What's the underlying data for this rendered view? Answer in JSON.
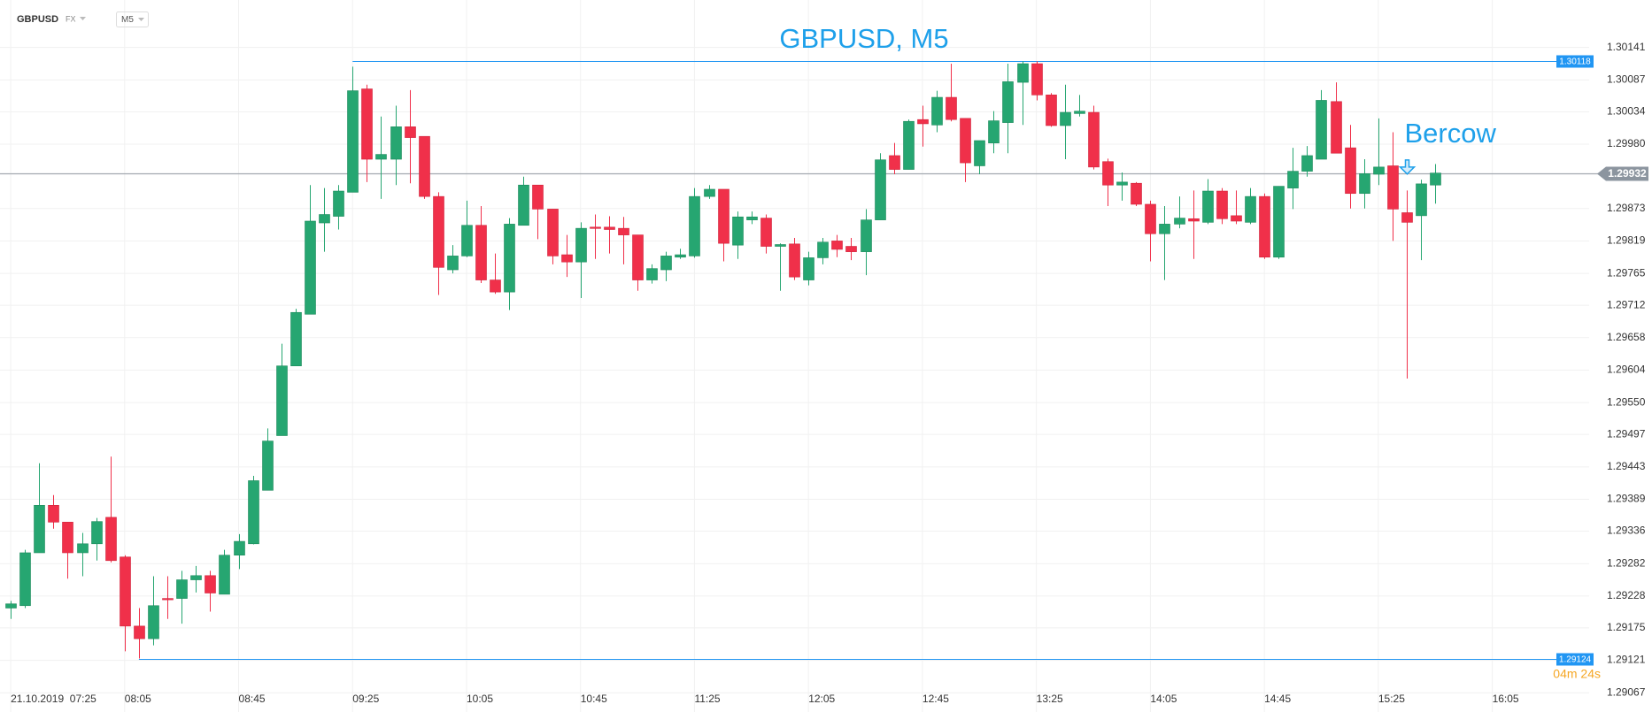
{
  "chart_data": {
    "type": "candlestick",
    "symbol": "GBPUSD",
    "market": "FX",
    "timeframe": "M5",
    "title": "GBPUSD, M5",
    "up_color": "#26a671",
    "down_color": "#f0304a",
    "open": [
      1.29208,
      1.29212,
      1.293,
      1.29379,
      1.29351,
      1.293,
      1.29315,
      1.29359,
      1.29293,
      1.29178,
      1.29157,
      1.29224,
      1.29224,
      1.29255,
      1.29262,
      1.29231,
      1.29296,
      1.29315,
      1.29404,
      1.29495,
      1.29611,
      1.29697,
      1.29849,
      1.2986,
      1.299,
      1.30072,
      1.29955,
      1.29955,
      1.30009,
      1.29993,
      1.29893,
      1.29771,
      1.29794,
      1.29845,
      1.29754,
      1.29734,
      1.29845,
      1.29912,
      1.29872,
      1.29796,
      1.29784,
      1.29842,
      1.29842,
      1.2984,
      1.29829,
      1.29754,
      1.29771,
      1.29792,
      1.29794,
      1.29893,
      1.29905,
      1.29812,
      1.29854,
      1.29857,
      1.2981,
      1.29814,
      1.29754,
      1.29791,
      1.29819,
      1.2981,
      1.29801,
      1.29854,
      1.29961,
      1.29938,
      1.30021,
      1.30012,
      1.30058,
      1.30023,
      1.29944,
      1.29982,
      1.30016,
      1.30083,
      1.30114,
      1.30062,
      1.30011,
      1.30031,
      1.30033,
      1.29951,
      1.29912,
      1.29915,
      1.2988,
      1.29831,
      1.29847,
      1.29856,
      1.2985,
      1.29902,
      1.29861,
      1.2985,
      1.29893,
      1.29792,
      1.29907,
      1.29935,
      1.29955,
      1.30051,
      1.29974,
      1.29898,
      1.2993,
      1.29944,
      1.29866,
      1.29861,
      1.29912
    ],
    "high": [
      1.2922,
      1.29305,
      1.29449,
      1.29396,
      1.29351,
      1.29333,
      1.29358,
      1.2946,
      1.29296,
      1.29208,
      1.29261,
      1.29261,
      1.2927,
      1.29278,
      1.2927,
      1.29305,
      1.29331,
      1.29428,
      1.29507,
      1.29648,
      1.29706,
      1.29912,
      1.29907,
      1.29912,
      1.30109,
      1.30079,
      1.30026,
      1.30044,
      1.3007,
      1.29993,
      1.299,
      1.29812,
      1.29886,
      1.29877,
      1.29798,
      1.29857,
      1.29926,
      1.29912,
      1.29872,
      1.29829,
      1.2985,
      1.29863,
      1.2986,
      1.29859,
      1.29829,
      1.2978,
      1.29801,
      1.29806,
      1.29907,
      1.29912,
      1.29905,
      1.29868,
      1.29868,
      1.29863,
      1.29815,
      1.29824,
      1.29801,
      1.29824,
      1.29829,
      1.29824,
      1.29872,
      1.29965,
      1.29982,
      1.30021,
      1.30044,
      1.30069,
      1.30114,
      1.30023,
      1.29977,
      1.30035,
      1.30114,
      1.30118,
      1.30118,
      1.30065,
      1.30079,
      1.30062,
      1.30044,
      1.29956,
      1.29933,
      1.29917,
      1.29886,
      1.29877,
      1.29893,
      1.29903,
      1.29922,
      1.29907,
      1.29903,
      1.29907,
      1.29898,
      1.2991,
      1.29974,
      1.29977,
      1.3007,
      1.30083,
      1.30012,
      1.29955,
      1.30023,
      1.3,
      1.29903,
      1.29921,
      1.29947
    ],
    "low": [
      1.2919,
      1.29208,
      1.293,
      1.2934,
      1.29257,
      1.29261,
      1.29287,
      1.29284,
      1.29136,
      1.29124,
      1.29146,
      1.2919,
      1.29182,
      1.29234,
      1.29202,
      1.29231,
      1.29273,
      1.29314,
      1.29404,
      1.29495,
      1.29611,
      1.29697,
      1.29801,
      1.29838,
      1.299,
      1.29917,
      1.29889,
      1.29912,
      1.29915,
      1.29889,
      1.29729,
      1.29765,
      1.29792,
      1.29749,
      1.29731,
      1.29704,
      1.29845,
      1.29822,
      1.2978,
      1.29759,
      1.29724,
      1.29789,
      1.29798,
      1.2978,
      1.29736,
      1.29748,
      1.29752,
      1.29789,
      1.29791,
      1.29889,
      1.29785,
      1.29789,
      1.29847,
      1.29798,
      1.29736,
      1.29754,
      1.29745,
      1.2978,
      1.29792,
      1.29787,
      1.29762,
      1.29854,
      1.2993,
      1.29938,
      1.29976,
      1.3,
      1.30018,
      1.29917,
      1.2993,
      1.29965,
      1.29965,
      1.30012,
      1.30053,
      1.30009,
      1.29955,
      1.30026,
      1.29938,
      1.29877,
      1.29886,
      1.29877,
      1.29785,
      1.29754,
      1.2984,
      1.29789,
      1.29847,
      1.29847,
      1.29847,
      1.29847,
      1.29789,
      1.29789,
      1.29872,
      1.29926,
      1.29956,
      1.29965,
      1.29873,
      1.29873,
      1.29912,
      1.29819,
      1.2959,
      1.29787,
      1.29881
    ],
    "close": [
      1.29215,
      1.293,
      1.29379,
      1.29351,
      1.293,
      1.29315,
      1.29352,
      1.29287,
      1.29178,
      1.29157,
      1.29212,
      1.29222,
      1.29255,
      1.29262,
      1.29233,
      1.29296,
      1.29319,
      1.2942,
      1.29486,
      1.29611,
      1.297,
      1.29852,
      1.29863,
      1.29902,
      1.30069,
      1.29955,
      1.29963,
      1.30009,
      1.29991,
      1.29893,
      1.29775,
      1.29794,
      1.29845,
      1.29754,
      1.29734,
      1.29847,
      1.29912,
      1.29872,
      1.29794,
      1.29784,
      1.2984,
      1.2984,
      1.29838,
      1.29829,
      1.29754,
      1.29773,
      1.29794,
      1.29796,
      1.29893,
      1.29905,
      1.29815,
      1.29859,
      1.29859,
      1.2981,
      1.29813,
      1.29759,
      1.29791,
      1.29817,
      1.29805,
      1.29801,
      1.29854,
      1.29954,
      1.29938,
      1.30018,
      1.30014,
      1.30058,
      1.30021,
      1.29949,
      1.29986,
      1.30019,
      1.30084,
      1.30114,
      1.30062,
      1.30011,
      1.30033,
      1.30035,
      1.29942,
      1.29912,
      1.29917,
      1.2988,
      1.29831,
      1.29847,
      1.29857,
      1.29852,
      1.29902,
      1.29856,
      1.29852,
      1.29893,
      1.29792,
      1.2991,
      1.29935,
      1.29961,
      1.30053,
      1.29965,
      1.29898,
      1.29931,
      1.29942,
      1.29872,
      1.2985,
      1.29914,
      1.29932
    ],
    "xlim": [
      -0.75,
      110.8
    ],
    "xticks": [
      {
        "value": 0,
        "label": "21.10.2019  07:25"
      },
      {
        "value": 8,
        "label": "08:05"
      },
      {
        "value": 16,
        "label": "08:45"
      },
      {
        "value": 24,
        "label": "09:25"
      },
      {
        "value": 32,
        "label": "10:05"
      },
      {
        "value": 40,
        "label": "10:45"
      },
      {
        "value": 48,
        "label": "11:25"
      },
      {
        "value": 56,
        "label": "12:05"
      },
      {
        "value": 64,
        "label": "12:45"
      },
      {
        "value": 72,
        "label": "13:25"
      },
      {
        "value": 80,
        "label": "14:05"
      },
      {
        "value": 88,
        "label": "14:45"
      },
      {
        "value": 96,
        "label": "15:25"
      },
      {
        "value": 104,
        "label": "16:05"
      }
    ],
    "ylim": [
      1.29035,
      1.3022
    ],
    "yticks": [
      1.30141,
      1.30087,
      1.30034,
      {
        "value": 1.2998,
        "label": "1.29980"
      },
      1.29873,
      1.29819,
      1.29765,
      1.29712,
      1.29658,
      1.29604,
      {
        "value": 1.2955,
        "label": "1.29550"
      },
      1.29497,
      1.29443,
      1.29389,
      1.29336,
      1.29282,
      1.29228,
      1.29175,
      1.29121,
      1.29067
    ],
    "grid": true,
    "levels": [
      {
        "value": 1.30118,
        "x": 24,
        "color": "#2196f3"
      },
      {
        "value": 1.29124,
        "x": 9,
        "color": "#2196f3"
      }
    ],
    "current_price": 1.29932,
    "countdown": "04m 24s",
    "annotation": {
      "text": "Bercow",
      "x": 98,
      "y": 1.29945,
      "color": "#1ea0ea"
    }
  }
}
